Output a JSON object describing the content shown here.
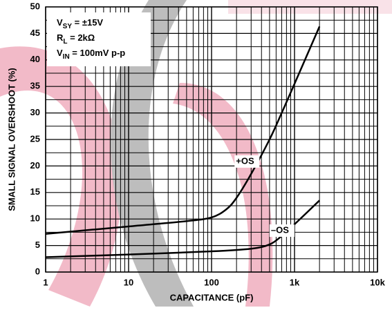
{
  "chart_data": {
    "type": "line",
    "xlabel": "CAPACITANCE (pF)",
    "ylabel": "SMALL SIGNAL OVERSHOOT (%)",
    "xscale": "log",
    "xlim": [
      1,
      10000
    ],
    "xticks": [
      1,
      10,
      100,
      {
        "value": 1000,
        "label": "1k"
      },
      {
        "value": 10000,
        "label": "10k"
      }
    ],
    "ylim": [
      0,
      50
    ],
    "yticks": [
      0,
      5,
      10,
      15,
      20,
      25,
      30,
      35,
      40,
      45,
      50
    ],
    "grid": true,
    "minor_grid": true,
    "annotations": [
      {
        "main": "V",
        "sub": "SY",
        "rest": " = ±15V"
      },
      {
        "main": "R",
        "sub": "L",
        "rest": " = 2kΩ"
      },
      {
        "main": "V",
        "sub": "IN",
        "rest": " = 100mV p-p"
      }
    ],
    "series": [
      {
        "name": "+OS",
        "color": "#000000",
        "x": [
          1,
          10,
          50,
          100,
          150,
          200,
          300,
          500,
          700,
          1000,
          2000
        ],
        "values": [
          7.2,
          8.6,
          9.6,
          10.3,
          11.8,
          14,
          18.5,
          25,
          30,
          35.5,
          46.3
        ]
      },
      {
        "name": "–OS",
        "color": "#000000",
        "x": [
          1,
          10,
          100,
          300,
          500,
          700,
          1000,
          2000
        ],
        "values": [
          2.8,
          3.3,
          3.9,
          4.4,
          5.2,
          6.8,
          9,
          13.5
        ]
      }
    ]
  }
}
